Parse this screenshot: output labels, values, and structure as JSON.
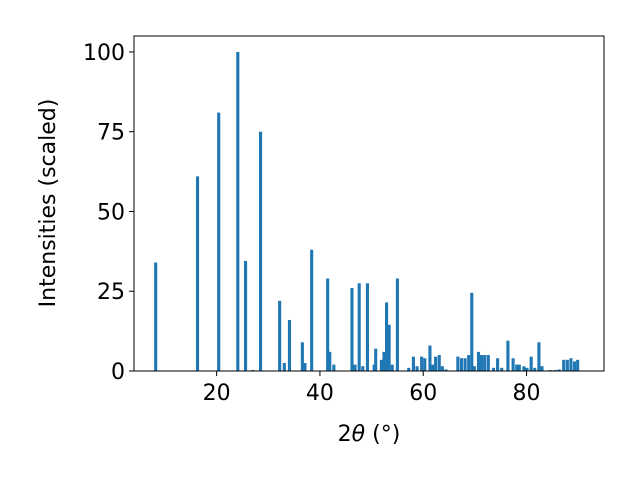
{
  "chart_data": {
    "type": "bar",
    "title": "",
    "xlabel_main": "2",
    "xlabel_theta": "θ",
    "xlabel_unit": " (°)",
    "ylabel": "Intensities (scaled)",
    "xlim": [
      4,
      95
    ],
    "ylim": [
      0,
      105
    ],
    "xticks": [
      20,
      40,
      60,
      80
    ],
    "yticks": [
      0,
      25,
      50,
      75,
      100
    ],
    "grid": false,
    "bar_color": "#1f77b4",
    "bar_width_deg": 0.6,
    "series": [
      {
        "x": [
          8.2,
          16.3,
          20.4,
          24.1,
          25.6,
          27.0,
          28.5,
          32.2,
          33.1,
          34.1,
          36.6,
          37.1,
          38.4,
          41.5,
          41.9,
          42.7,
          46.2,
          46.8,
          47.6,
          48.3,
          49.2,
          50.5,
          50.8,
          51.9,
          52.4,
          52.9,
          53.4,
          54.0,
          55.0,
          57.2,
          58.1,
          58.8,
          59.7,
          60.3,
          61.3,
          61.9,
          62.4,
          63.1,
          63.7,
          64.4,
          66.7,
          67.4,
          68.1,
          68.8,
          69.4,
          69.9,
          70.7,
          71.3,
          71.9,
          72.6,
          73.6,
          74.4,
          75.2,
          76.4,
          77.4,
          78.1,
          78.6,
          79.5,
          80.1,
          80.9,
          81.6,
          82.4,
          83.0,
          84.6,
          85.5,
          86.3,
          87.2,
          87.9,
          88.6,
          89.3,
          89.9
        ],
        "y": [
          34,
          61,
          81,
          100,
          34.5,
          0.3,
          75,
          22,
          2.5,
          16,
          9,
          2.5,
          38,
          29,
          6,
          2,
          26,
          2,
          27.5,
          1.5,
          27.5,
          2,
          7,
          3.5,
          6,
          21.5,
          14.5,
          2,
          29,
          1,
          4.5,
          1.5,
          4.5,
          4,
          8,
          2,
          4.5,
          5,
          1.5,
          0.5,
          4.5,
          4,
          4,
          5,
          24.5,
          1.5,
          6,
          5,
          5,
          5,
          1,
          4,
          1,
          9.5,
          4,
          2,
          2,
          1.5,
          1,
          4.5,
          1,
          9,
          1.5,
          0.3,
          0.3,
          0.5,
          3.5,
          3.5,
          4,
          3,
          3.5
        ]
      }
    ]
  }
}
